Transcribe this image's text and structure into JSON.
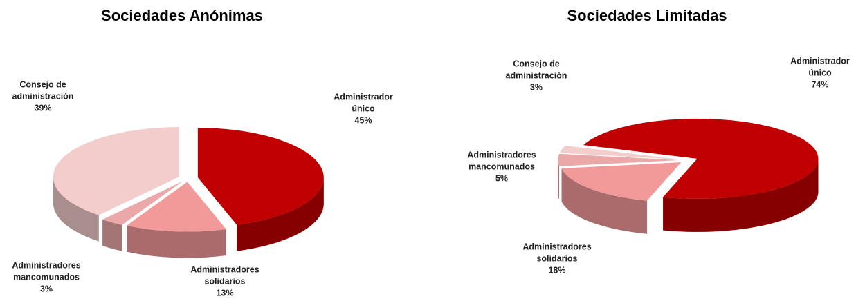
{
  "chart_data": [
    {
      "type": "pie",
      "title": "Sociedades Anónimas",
      "categories": [
        "Administrador único",
        "Administradores solidarios",
        "Administradores mancomunados",
        "Consejo de administración"
      ],
      "values": [
        45,
        13,
        3,
        39
      ],
      "value_labels": [
        "45%",
        "13%",
        "3%",
        "39%"
      ],
      "colors": [
        "#c00000",
        "#f29a9a",
        "#eaa8a8",
        "#f3cccc"
      ]
    },
    {
      "type": "pie",
      "title": "Sociedades Limitadas",
      "categories": [
        "Administrador único",
        "Administradores solidarios",
        "Administradores mancomunados",
        "Consejo de administración"
      ],
      "values": [
        74,
        18,
        5,
        3
      ],
      "value_labels": [
        "74%",
        "18%",
        "5%",
        "3%"
      ],
      "colors": [
        "#c00000",
        "#f29a9a",
        "#eaa8a8",
        "#f3cccc"
      ]
    }
  ]
}
